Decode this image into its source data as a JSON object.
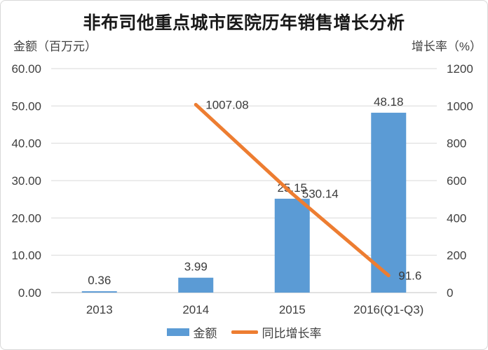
{
  "window": {
    "background": "#ffffff",
    "border_color": "#d8d8d8"
  },
  "chart_data": {
    "type": "combo-bar-line",
    "title": "非布司他重点城市医院历年销售增长分析",
    "categories": [
      "2013",
      "2014",
      "2015",
      "2016(Q1-Q3)"
    ],
    "series": [
      {
        "name": "金额",
        "chart_type": "bar",
        "axis": "left",
        "color": "#5B9BD5",
        "values": [
          0.36,
          3.99,
          25.15,
          48.18
        ],
        "data_labels": [
          "0.36",
          "3.99",
          "25.15",
          "48.18"
        ]
      },
      {
        "name": "同比增长率",
        "chart_type": "line",
        "axis": "right",
        "color": "#ED7D31",
        "values": [
          null,
          1007.08,
          530.14,
          91.6
        ],
        "data_labels": [
          "",
          "1007.08",
          "530.14",
          "91.6"
        ]
      }
    ],
    "left_axis": {
      "title": "金额（百万元）",
      "min": 0,
      "max": 60,
      "step": 10,
      "tick_labels": [
        "0.00",
        "10.00",
        "20.00",
        "30.00",
        "40.00",
        "50.00",
        "60.00"
      ]
    },
    "right_axis": {
      "title": "增长率（%）",
      "min": 0,
      "max": 1200,
      "step": 200,
      "tick_labels": [
        "0",
        "200",
        "400",
        "600",
        "800",
        "1000",
        "1200"
      ]
    },
    "grid": true,
    "gridline_color": "#d9d9d9",
    "axis_line_color": "#c6c6c6",
    "text_color": "#3f3f3f",
    "legend": {
      "position": "bottom",
      "items": [
        {
          "label": "金额",
          "swatch": "bar",
          "color": "#5B9BD5"
        },
        {
          "label": "同比增长率",
          "swatch": "line",
          "color": "#ED7D31"
        }
      ]
    }
  }
}
